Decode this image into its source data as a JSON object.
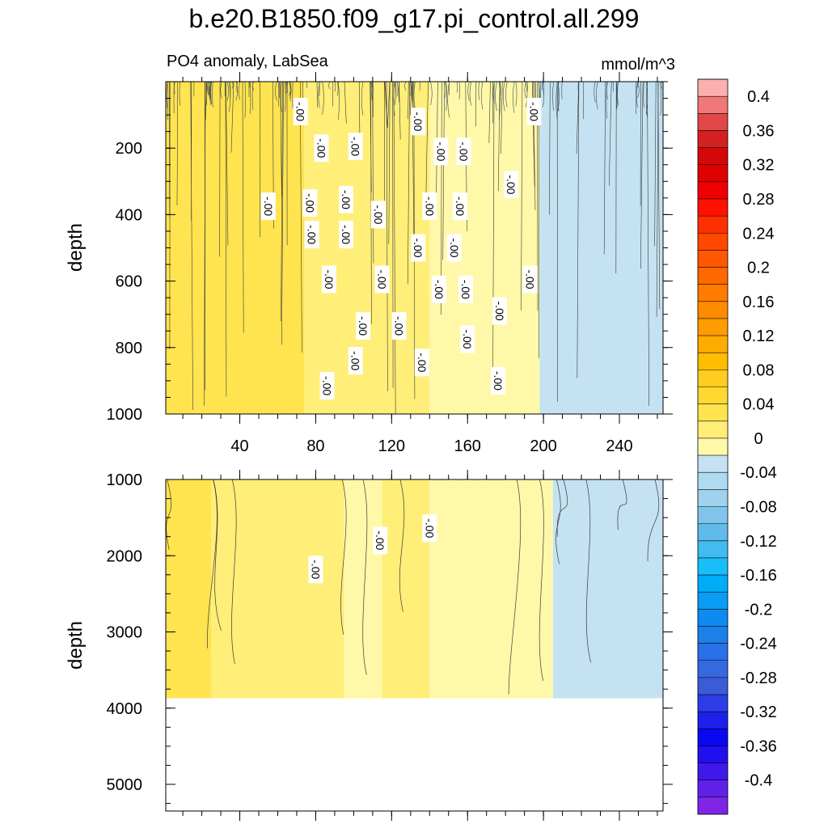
{
  "chart_data": {
    "type": "contour",
    "title": "b.e20.B1850.f09_g17.pi_control.all.299",
    "variable_label": "PO4 anomaly, LabSea",
    "units": "mmol/m^3",
    "x": {
      "label": "",
      "range": [
        1,
        263
      ],
      "ticks": [
        40,
        80,
        120,
        160,
        200,
        240
      ],
      "tick_labels": [
        "40",
        "80",
        "120",
        "160",
        "200",
        "240"
      ]
    },
    "upper_panel": {
      "ylabel": "depth",
      "ylim": [
        0,
        1000
      ],
      "yticks": [
        200,
        400,
        600,
        800,
        1000
      ],
      "ytick_labels": [
        "200",
        "400",
        "600",
        "800",
        "1000"
      ],
      "regions": [
        {
          "x_start": 1,
          "x_end": 10,
          "value": 0.03
        },
        {
          "x_start": 10,
          "x_end": 74,
          "value": 0.02
        },
        {
          "x_start": 74,
          "x_end": 140,
          "value": 0.005
        },
        {
          "x_start": 140,
          "x_end": 198,
          "value": -0.015
        },
        {
          "x_start": 198,
          "x_end": 263,
          "value": -0.03
        }
      ],
      "contour_labels": [
        {
          "x": 72,
          "y": 90,
          "text": "-.00"
        },
        {
          "x": 134,
          "y": 120,
          "text": "-.00"
        },
        {
          "x": 195,
          "y": 90,
          "text": "-.00"
        },
        {
          "x": 83,
          "y": 200,
          "text": "-.00"
        },
        {
          "x": 101,
          "y": 195,
          "text": "-.00"
        },
        {
          "x": 146,
          "y": 210,
          "text": "-.00"
        },
        {
          "x": 158,
          "y": 210,
          "text": "-.00"
        },
        {
          "x": 183,
          "y": 310,
          "text": "-.00"
        },
        {
          "x": 55,
          "y": 375,
          "text": "-.00"
        },
        {
          "x": 77,
          "y": 365,
          "text": "-.00"
        },
        {
          "x": 96,
          "y": 355,
          "text": "-.00"
        },
        {
          "x": 113,
          "y": 400,
          "text": "-.00"
        },
        {
          "x": 140,
          "y": 375,
          "text": "-.00"
        },
        {
          "x": 156,
          "y": 375,
          "text": "-.00"
        },
        {
          "x": 78,
          "y": 460,
          "text": "-.00"
        },
        {
          "x": 96,
          "y": 460,
          "text": "-.00"
        },
        {
          "x": 134,
          "y": 500,
          "text": "-.00"
        },
        {
          "x": 153,
          "y": 500,
          "text": "-.00"
        },
        {
          "x": 87,
          "y": 595,
          "text": "-.00"
        },
        {
          "x": 115,
          "y": 595,
          "text": "-.00"
        },
        {
          "x": 145,
          "y": 625,
          "text": "-.00"
        },
        {
          "x": 159,
          "y": 625,
          "text": "-.00"
        },
        {
          "x": 193,
          "y": 595,
          "text": "-.00"
        },
        {
          "x": 177,
          "y": 690,
          "text": "-.00"
        },
        {
          "x": 105,
          "y": 735,
          "text": "-.00"
        },
        {
          "x": 124,
          "y": 735,
          "text": "-.00"
        },
        {
          "x": 160,
          "y": 775,
          "text": "-.00"
        },
        {
          "x": 101,
          "y": 840,
          "text": "-.00"
        },
        {
          "x": 136,
          "y": 845,
          "text": "-.00"
        },
        {
          "x": 86,
          "y": 915,
          "text": "-.00"
        },
        {
          "x": 176,
          "y": 900,
          "text": "-.00"
        }
      ]
    },
    "lower_panel": {
      "ylabel": "depth",
      "ylim": [
        1000,
        5350
      ],
      "yticks": [
        1000,
        2000,
        3000,
        4000,
        5000
      ],
      "ytick_labels": [
        "1000",
        "2000",
        "3000",
        "4000",
        "5000"
      ],
      "data_bottom_depth": 3870,
      "regions": [
        {
          "x_start": 1,
          "x_end": 25,
          "value": 0.03
        },
        {
          "x_start": 25,
          "x_end": 95,
          "value": 0.005
        },
        {
          "x_start": 95,
          "x_end": 115,
          "value": -0.015
        },
        {
          "x_start": 115,
          "x_end": 140,
          "value": 0.005
        },
        {
          "x_start": 140,
          "x_end": 205,
          "value": -0.015
        },
        {
          "x_start": 205,
          "x_end": 263,
          "value": -0.03
        }
      ],
      "contour_labels": [
        {
          "x": 80,
          "y": 2180,
          "text": "-.00"
        },
        {
          "x": 114,
          "y": 1800,
          "text": "-.00"
        },
        {
          "x": 140,
          "y": 1640,
          "text": "-.00"
        }
      ]
    },
    "colorbar": {
      "orientation": "vertical",
      "levels": [
        0.4,
        0.36,
        0.32,
        0.28,
        0.24,
        0.2,
        0.16,
        0.12,
        0.08,
        0.04,
        0,
        -0.04,
        -0.08,
        -0.12,
        -0.16,
        -0.2,
        -0.24,
        -0.28,
        -0.32,
        -0.36,
        -0.4
      ],
      "labels": [
        "0.4",
        "0.36",
        "0.32",
        "0.28",
        "0.24",
        "0.2",
        "0.16",
        "0.12",
        "0.08",
        "0.04",
        "0",
        "-0.04",
        "-0.08",
        "-0.12",
        "-0.16",
        "-0.2",
        "-0.24",
        "-0.28",
        "-0.32",
        "-0.36",
        "-0.4"
      ],
      "colors": [
        "#FBB0B0",
        "#F07878",
        "#E04848",
        "#D42020",
        "#D40808",
        "#E00000",
        "#F00000",
        "#FF1000",
        "#FF3000",
        "#FF4800",
        "#FF5800",
        "#FF6800",
        "#FF7C00",
        "#FF8C00",
        "#FF9C00",
        "#FFAC00",
        "#FFBC00",
        "#FFCC20",
        "#FFD830",
        "#FFE450",
        "#FFEE78",
        "#FFF8A8",
        "#C4E2F2",
        "#B0DAF0",
        "#9ED2EE",
        "#80C4EC",
        "#62BAEA",
        "#40BCF0",
        "#18BEF8",
        "#00ACF8",
        "#089CF4",
        "#0C8CF0",
        "#1C80EA",
        "#2A70E8",
        "#3668E0",
        "#3A5CD8",
        "#2C3CE8",
        "#1C20E8",
        "#0A08F0",
        "#2010F0",
        "#4018EC",
        "#6020E8",
        "#8024E8"
      ]
    }
  }
}
